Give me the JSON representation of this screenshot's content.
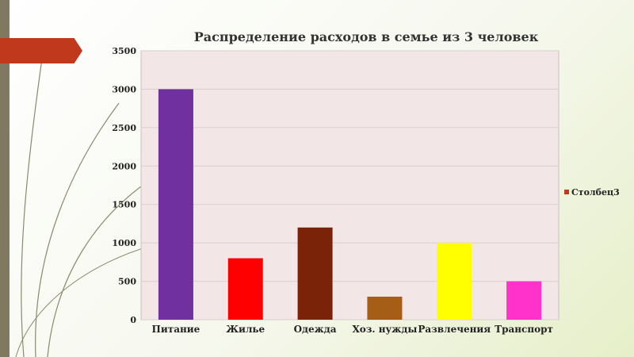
{
  "chart_data": {
    "type": "bar",
    "title": "Распределение расходов в семье из 3 человек",
    "categories": [
      "Питание",
      "Жилье",
      "Одежда",
      "Хоз. нужды",
      "Развлечения",
      "Транспорт"
    ],
    "series": [
      {
        "name": "Столбец3",
        "values": [
          3000,
          800,
          1200,
          300,
          1000,
          500
        ],
        "colors": [
          "#7030a0",
          "#ff0000",
          "#7b2309",
          "#a65d15",
          "#ffff00",
          "#ff33cc"
        ]
      }
    ],
    "ylim": [
      0,
      3500
    ],
    "yticks": [
      0,
      500,
      1000,
      1500,
      2000,
      2500,
      3000,
      3500
    ],
    "grid": true,
    "legend": "right",
    "plot_background": "#f2e6e6",
    "legend_color": "#c0391c"
  }
}
